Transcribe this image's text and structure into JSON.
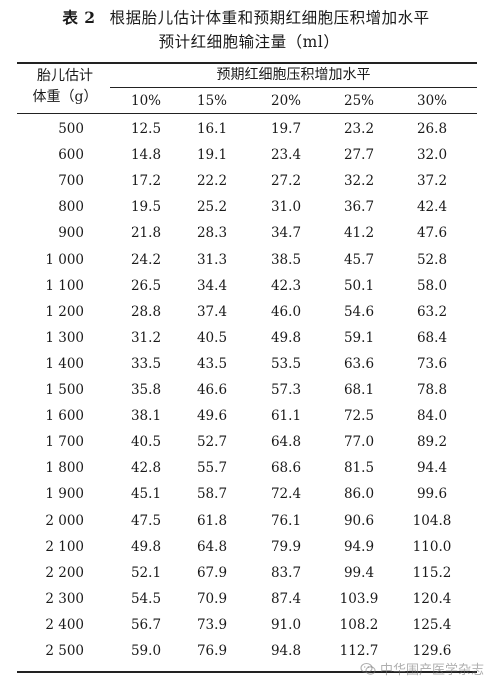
{
  "title": {
    "label": "表 2",
    "line1": "根据胎儿估计体重和预期红细胞压积增加水平",
    "line2": "预计红细胞输注量（ml）"
  },
  "header": {
    "weight_col_line1": "胎儿估计",
    "weight_col_line2": "体重（g）",
    "group": "预期红细胞压积增加水平",
    "percentages": [
      "10%",
      "15%",
      "20%",
      "25%",
      "30%"
    ]
  },
  "rows": [
    {
      "weight": "500",
      "values": [
        "12.5",
        "16.1",
        "19.7",
        "23.2",
        "26.8"
      ]
    },
    {
      "weight": "600",
      "values": [
        "14.8",
        "19.1",
        "23.4",
        "27.7",
        "32.0"
      ]
    },
    {
      "weight": "700",
      "values": [
        "17.2",
        "22.2",
        "27.2",
        "32.2",
        "37.2"
      ]
    },
    {
      "weight": "800",
      "values": [
        "19.5",
        "25.2",
        "31.0",
        "36.7",
        "42.4"
      ]
    },
    {
      "weight": "900",
      "values": [
        "21.8",
        "28.3",
        "34.7",
        "41.2",
        "47.6"
      ]
    },
    {
      "weight": "1 000",
      "values": [
        "24.2",
        "31.3",
        "38.5",
        "45.7",
        "52.8"
      ]
    },
    {
      "weight": "1 100",
      "values": [
        "26.5",
        "34.4",
        "42.3",
        "50.1",
        "58.0"
      ]
    },
    {
      "weight": "1 200",
      "values": [
        "28.8",
        "37.4",
        "46.0",
        "54.6",
        "63.2"
      ]
    },
    {
      "weight": "1 300",
      "values": [
        "31.2",
        "40.5",
        "49.8",
        "59.1",
        "68.4"
      ]
    },
    {
      "weight": "1 400",
      "values": [
        "33.5",
        "43.5",
        "53.5",
        "63.6",
        "73.6"
      ]
    },
    {
      "weight": "1 500",
      "values": [
        "35.8",
        "46.6",
        "57.3",
        "68.1",
        "78.8"
      ]
    },
    {
      "weight": "1 600",
      "values": [
        "38.1",
        "49.6",
        "61.1",
        "72.5",
        "84.0"
      ]
    },
    {
      "weight": "1 700",
      "values": [
        "40.5",
        "52.7",
        "64.8",
        "77.0",
        "89.2"
      ]
    },
    {
      "weight": "1 800",
      "values": [
        "42.8",
        "55.7",
        "68.6",
        "81.5",
        "94.4"
      ]
    },
    {
      "weight": "1 900",
      "values": [
        "45.1",
        "58.7",
        "72.4",
        "86.0",
        "99.6"
      ]
    },
    {
      "weight": "2 000",
      "values": [
        "47.5",
        "61.8",
        "76.1",
        "90.6",
        "104.8"
      ]
    },
    {
      "weight": "2 100",
      "values": [
        "49.8",
        "64.8",
        "79.9",
        "94.9",
        "110.0"
      ]
    },
    {
      "weight": "2 200",
      "values": [
        "52.1",
        "67.9",
        "83.7",
        "99.4",
        "115.2"
      ]
    },
    {
      "weight": "2 300",
      "values": [
        "54.5",
        "70.9",
        "87.4",
        "103.9",
        "120.4"
      ]
    },
    {
      "weight": "2 400",
      "values": [
        "56.7",
        "73.9",
        "91.0",
        "108.2",
        "125.4"
      ]
    },
    {
      "weight": "2 500",
      "values": [
        "59.0",
        "76.9",
        "94.8",
        "112.7",
        "129.6"
      ]
    }
  ],
  "watermark": {
    "text": "中华围产医学杂志",
    "icon": "wechat-icon"
  }
}
